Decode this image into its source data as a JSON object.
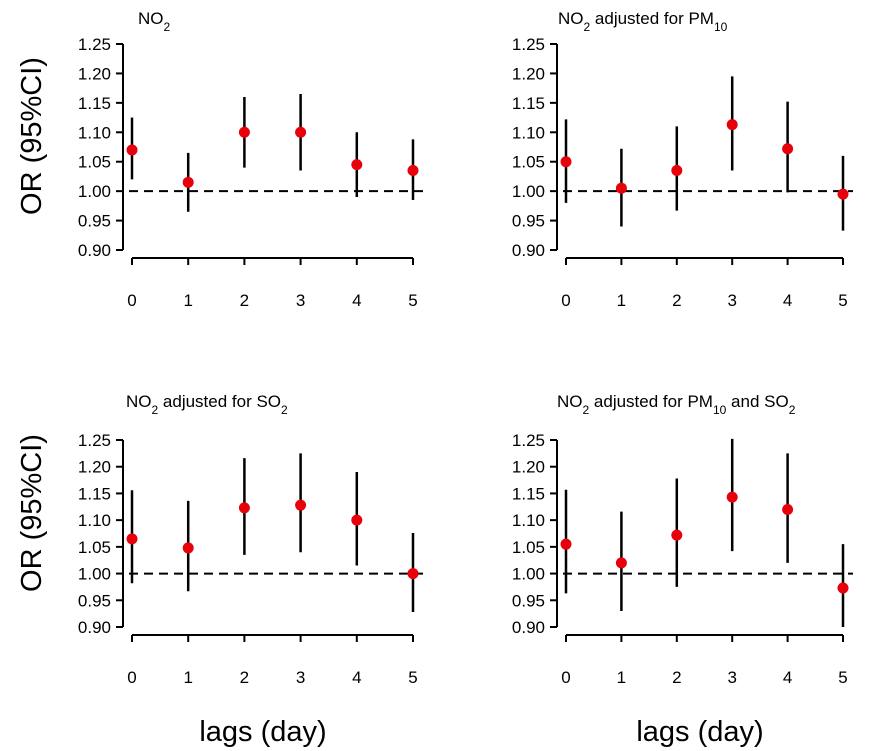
{
  "ylabel": "OR (95%CI)",
  "xlabel": "lags (day)",
  "chart_data": [
    {
      "type": "scatter",
      "title": {
        "main": "NO",
        "sub": "2",
        "rest": []
      },
      "x": [
        0,
        1,
        2,
        3,
        4,
        5
      ],
      "categories": [
        "0",
        "1",
        "2",
        "3",
        "4",
        "5"
      ],
      "series": [
        {
          "values": [
            1.07,
            1.015,
            1.1,
            1.1,
            1.045,
            1.035
          ]
        }
      ],
      "ci_low": [
        1.02,
        0.965,
        1.04,
        1.035,
        0.99,
        0.985
      ],
      "ci_high": [
        1.125,
        1.065,
        1.16,
        1.165,
        1.1,
        1.088
      ],
      "reference_line": 1.0,
      "ylim": [
        0.9,
        1.25
      ],
      "yticks": [
        "0.90",
        "0.95",
        "1.00",
        "1.05",
        "1.10",
        "1.15",
        "1.20",
        "1.25"
      ],
      "point_color": "#e8000b",
      "grid": false
    },
    {
      "type": "scatter",
      "title": {
        "main": "NO",
        "sub": "2",
        "rest": [
          {
            "text": " adjusted for PM",
            "sub": "10"
          }
        ]
      },
      "x": [
        0,
        1,
        2,
        3,
        4,
        5
      ],
      "categories": [
        "0",
        "1",
        "2",
        "3",
        "4",
        "5"
      ],
      "series": [
        {
          "values": [
            1.05,
            1.005,
            1.035,
            1.113,
            1.072,
            0.995
          ]
        }
      ],
      "ci_low": [
        0.98,
        0.94,
        0.967,
        1.035,
        0.998,
        0.933
      ],
      "ci_high": [
        1.122,
        1.072,
        1.11,
        1.195,
        1.152,
        1.06
      ],
      "reference_line": 1.0,
      "ylim": [
        0.9,
        1.25
      ],
      "yticks": [
        "0.90",
        "0.95",
        "1.00",
        "1.05",
        "1.10",
        "1.15",
        "1.20",
        "1.25"
      ],
      "point_color": "#e8000b",
      "grid": false
    },
    {
      "type": "scatter",
      "title": {
        "main": "NO",
        "sub": "2",
        "rest": [
          {
            "text": " adjusted for SO",
            "sub": "2"
          }
        ]
      },
      "x": [
        0,
        1,
        2,
        3,
        4,
        5
      ],
      "categories": [
        "0",
        "1",
        "2",
        "3",
        "4",
        "5"
      ],
      "series": [
        {
          "values": [
            1.065,
            1.048,
            1.123,
            1.128,
            1.1,
            1.0
          ]
        }
      ],
      "ci_low": [
        0.982,
        0.967,
        1.035,
        1.04,
        1.015,
        0.928
      ],
      "ci_high": [
        1.156,
        1.136,
        1.216,
        1.225,
        1.19,
        1.076
      ],
      "reference_line": 1.0,
      "ylim": [
        0.9,
        1.25
      ],
      "yticks": [
        "0.90",
        "0.95",
        "1.00",
        "1.05",
        "1.10",
        "1.15",
        "1.20",
        "1.25"
      ],
      "point_color": "#e8000b",
      "grid": false
    },
    {
      "type": "scatter",
      "title": {
        "main": "NO",
        "sub": "2",
        "rest": [
          {
            "text": " adjusted for PM",
            "sub": "10"
          },
          {
            "text": " and SO",
            "sub": "2"
          }
        ]
      },
      "x": [
        0,
        1,
        2,
        3,
        4,
        5
      ],
      "categories": [
        "0",
        "1",
        "2",
        "3",
        "4",
        "5"
      ],
      "series": [
        {
          "values": [
            1.055,
            1.02,
            1.072,
            1.143,
            1.12,
            0.973
          ]
        }
      ],
      "ci_low": [
        0.963,
        0.93,
        0.975,
        1.042,
        1.02,
        0.9
      ],
      "ci_high": [
        1.157,
        1.116,
        1.178,
        1.252,
        1.225,
        1.055
      ],
      "reference_line": 1.0,
      "ylim": [
        0.9,
        1.25
      ],
      "yticks": [
        "0.90",
        "0.95",
        "1.00",
        "1.05",
        "1.10",
        "1.15",
        "1.20",
        "1.25"
      ],
      "point_color": "#e8000b",
      "grid": false
    }
  ]
}
